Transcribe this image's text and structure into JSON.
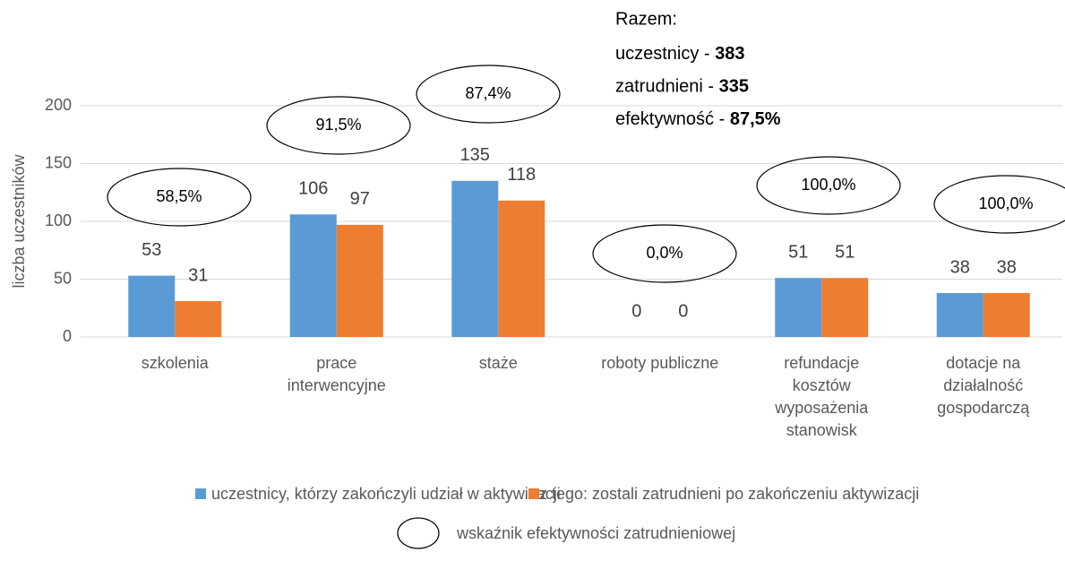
{
  "chart_data": {
    "type": "bar",
    "y_label": "liczba uczestników",
    "categories": [
      [
        "szkolenia"
      ],
      [
        "prace",
        "interwencyjne"
      ],
      [
        "staże"
      ],
      [
        "roboty publiczne"
      ],
      [
        "refundacje",
        "kosztów",
        "wyposażenia",
        "stanowisk"
      ],
      [
        "dotacje na",
        "działalność",
        "gospodarczą"
      ]
    ],
    "series": [
      {
        "name": "uczestnicy, którzy zakończyli udział w aktywizacji",
        "color": "#5b9bd5",
        "values": [
          53,
          106,
          135,
          0,
          51,
          38
        ]
      },
      {
        "name": "z tego: zostali zatrudnieni po zakończeniu aktywizacji",
        "color": "#ed7d31",
        "values": [
          31,
          97,
          118,
          0,
          51,
          38
        ]
      }
    ],
    "efficiency": {
      "name": "wskaźnik efektywności zatrudnieniowej",
      "values": [
        58.5,
        91.5,
        87.4,
        0,
        100,
        100
      ],
      "value_labels": [
        "58,5%",
        "91,5%",
        "87,4%",
        "0,0%",
        "100,0%",
        "100,0%"
      ]
    },
    "summary": {
      "title": "Razem:",
      "items": [
        {
          "label": "uczestnicy - ",
          "value": 383
        },
        {
          "label": "zatrudnieni - ",
          "value": 335
        },
        {
          "label": "efektywność - ",
          "value": 87.5,
          "value_label": "87,5%"
        }
      ]
    },
    "ylim": [
      0,
      200
    ],
    "yticks": [
      0,
      50,
      100,
      150,
      200
    ],
    "grid": true,
    "legend": "bottom"
  }
}
